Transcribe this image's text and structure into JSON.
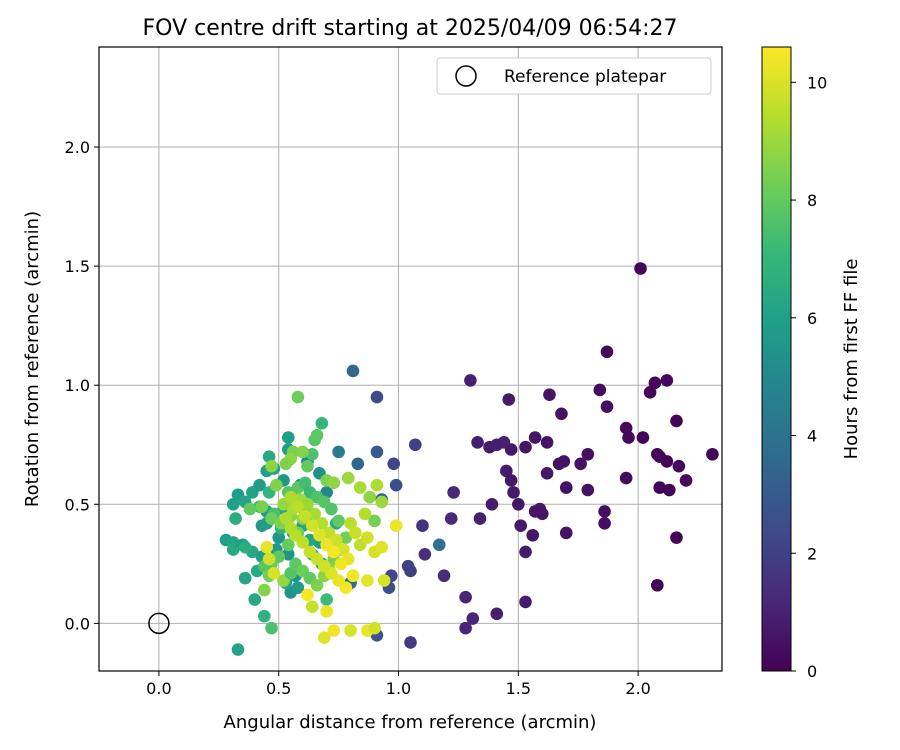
{
  "chart_data": {
    "type": "scatter",
    "title": "FOV centre drift starting at 2025/04/09 06:54:27",
    "xlabel": "Angular distance from reference (arcmin)",
    "ylabel": "Rotation from reference (arcmin)",
    "xlim": [
      -0.25,
      2.35
    ],
    "ylim": [
      -0.2,
      2.42
    ],
    "xticks": [
      0.0,
      0.5,
      1.0,
      1.5,
      2.0
    ],
    "yticks": [
      0.0,
      0.5,
      1.0,
      1.5,
      2.0
    ],
    "xtick_labels": [
      "0.0",
      "0.5",
      "1.0",
      "1.5",
      "2.0"
    ],
    "ytick_labels": [
      "0.0",
      "0.5",
      "1.0",
      "1.5",
      "2.0"
    ],
    "grid": true,
    "legend": {
      "label": "Reference platepar",
      "placement": "top-right"
    },
    "reference_point": {
      "x": 0.0,
      "y": 0.0
    },
    "colorbar": {
      "label": "Hours from first FF file",
      "colormap": "viridis",
      "range": [
        0,
        10.6
      ],
      "ticks": [
        0,
        2,
        4,
        6,
        8,
        10
      ],
      "tick_labels": [
        "0",
        "2",
        "4",
        "6",
        "8",
        "10"
      ]
    },
    "colormap_stops": [
      "#440154",
      "#482878",
      "#3e4a89",
      "#31688e",
      "#26828e",
      "#1f9e89",
      "#35b779",
      "#6ece58",
      "#b5de2b",
      "#fde725"
    ],
    "points": [
      [
        2.01,
        1.49,
        0.1
      ],
      [
        1.87,
        1.14,
        0.3
      ],
      [
        2.12,
        1.02,
        0.2
      ],
      [
        2.07,
        1.01,
        0.1
      ],
      [
        1.3,
        1.02,
        0.9
      ],
      [
        1.84,
        0.98,
        0.3
      ],
      [
        2.05,
        0.97,
        0.2
      ],
      [
        1.63,
        0.96,
        0.6
      ],
      [
        1.46,
        0.94,
        0.8
      ],
      [
        1.87,
        0.91,
        0.4
      ],
      [
        1.68,
        0.88,
        0.5
      ],
      [
        2.16,
        0.85,
        0.1
      ],
      [
        1.95,
        0.82,
        0.2
      ],
      [
        1.57,
        0.78,
        0.6
      ],
      [
        2.02,
        0.78,
        0.1
      ],
      [
        1.96,
        0.78,
        0.2
      ],
      [
        1.33,
        0.76,
        0.9
      ],
      [
        1.44,
        0.76,
        1.0
      ],
      [
        1.62,
        0.76,
        0.5
      ],
      [
        1.38,
        0.74,
        0.8
      ],
      [
        1.41,
        0.75,
        0.9
      ],
      [
        1.53,
        0.74,
        0.6
      ],
      [
        1.47,
        0.73,
        0.7
      ],
      [
        2.31,
        0.71,
        0.1
      ],
      [
        2.08,
        0.71,
        0.1
      ],
      [
        1.79,
        0.71,
        0.4
      ],
      [
        2.09,
        0.7,
        0.2
      ],
      [
        2.12,
        0.68,
        0.1
      ],
      [
        1.76,
        0.67,
        0.5
      ],
      [
        1.69,
        0.68,
        0.5
      ],
      [
        2.17,
        0.66,
        0.2
      ],
      [
        1.67,
        0.67,
        0.5
      ],
      [
        1.45,
        0.64,
        0.8
      ],
      [
        1.62,
        0.63,
        0.7
      ],
      [
        1.47,
        0.6,
        0.7
      ],
      [
        1.95,
        0.61,
        0.3
      ],
      [
        2.2,
        0.6,
        0.2
      ],
      [
        2.09,
        0.57,
        0.1
      ],
      [
        1.79,
        0.56,
        0.5
      ],
      [
        2.13,
        0.56,
        0.1
      ],
      [
        1.7,
        0.57,
        0.5
      ],
      [
        1.48,
        0.55,
        0.7
      ],
      [
        1.39,
        0.5,
        0.8
      ],
      [
        1.5,
        0.5,
        0.6
      ],
      [
        1.59,
        0.48,
        0.7
      ],
      [
        1.57,
        0.47,
        0.6
      ],
      [
        1.6,
        0.46,
        0.6
      ],
      [
        1.86,
        0.47,
        0.4
      ],
      [
        1.34,
        0.44,
        0.9
      ],
      [
        1.22,
        0.44,
        1.2
      ],
      [
        1.51,
        0.41,
        0.8
      ],
      [
        1.86,
        0.42,
        0.4
      ],
      [
        1.56,
        0.37,
        0.6
      ],
      [
        1.7,
        0.38,
        0.5
      ],
      [
        2.16,
        0.36,
        0.1
      ],
      [
        1.53,
        0.3,
        0.8
      ],
      [
        2.08,
        0.16,
        0.1
      ],
      [
        1.28,
        0.11,
        1.1
      ],
      [
        1.53,
        0.09,
        0.8
      ],
      [
        1.41,
        0.04,
        0.9
      ],
      [
        1.31,
        0.02,
        1.1
      ],
      [
        1.28,
        -0.02,
        1.1
      ],
      [
        1.05,
        -0.08,
        1.8
      ],
      [
        1.23,
        0.55,
        1.2
      ],
      [
        1.1,
        0.41,
        1.6
      ],
      [
        1.11,
        0.29,
        1.5
      ],
      [
        1.19,
        0.2,
        1.3
      ],
      [
        1.07,
        0.75,
        2.0
      ],
      [
        0.98,
        0.67,
        2.2
      ],
      [
        0.91,
        0.95,
        2.4
      ],
      [
        0.81,
        1.06,
        3.6
      ],
      [
        0.99,
        0.58,
        2.5
      ],
      [
        0.97,
        0.2,
        2.3
      ],
      [
        1.04,
        0.24,
        2.1
      ],
      [
        1.05,
        0.22,
        2.0
      ],
      [
        0.96,
        0.15,
        2.6
      ],
      [
        0.91,
        -0.05,
        2.8
      ],
      [
        0.91,
        0.72,
        3.0
      ],
      [
        0.83,
        0.67,
        3.5
      ],
      [
        0.8,
        0.17,
        3.7
      ],
      [
        1.17,
        0.33,
        3.9
      ],
      [
        0.93,
        0.52,
        3.1
      ],
      [
        0.75,
        0.72,
        4.4
      ],
      [
        0.62,
        0.68,
        4.8
      ],
      [
        0.67,
        0.63,
        5.3
      ],
      [
        0.7,
        0.55,
        4.9
      ],
      [
        0.59,
        0.58,
        5.2
      ],
      [
        0.52,
        0.6,
        5.6
      ],
      [
        0.54,
        0.78,
        5.9
      ],
      [
        0.54,
        0.73,
        5.8
      ],
      [
        0.48,
        0.65,
        6.1
      ],
      [
        0.45,
        0.64,
        6.0
      ],
      [
        0.46,
        0.7,
        6.3
      ],
      [
        0.33,
        0.54,
        5.9
      ],
      [
        0.36,
        0.51,
        6.2
      ],
      [
        0.31,
        0.5,
        6.0
      ],
      [
        0.39,
        0.55,
        6.1
      ],
      [
        0.42,
        0.58,
        5.8
      ],
      [
        0.45,
        0.47,
        5.9
      ],
      [
        0.43,
        0.41,
        5.7
      ],
      [
        0.32,
        0.44,
        6.5
      ],
      [
        0.28,
        0.35,
        6.0
      ],
      [
        0.31,
        0.34,
        6.2
      ],
      [
        0.31,
        0.31,
        6.4
      ],
      [
        0.35,
        0.33,
        5.9
      ],
      [
        0.39,
        0.3,
        6.3
      ],
      [
        0.36,
        0.32,
        6.6
      ],
      [
        0.43,
        0.28,
        5.8
      ],
      [
        0.36,
        0.19,
        6.2
      ],
      [
        0.41,
        0.22,
        6.4
      ],
      [
        0.4,
        0.1,
        6.3
      ],
      [
        0.44,
        0.03,
        6.8
      ],
      [
        0.47,
        -0.02,
        7.5
      ],
      [
        0.33,
        -0.11,
        6.1
      ],
      [
        0.45,
        0.42,
        6.0
      ],
      [
        0.5,
        0.36,
        5.6
      ],
      [
        0.49,
        0.31,
        5.7
      ],
      [
        0.54,
        0.29,
        5.5
      ],
      [
        0.57,
        0.2,
        5.4
      ],
      [
        0.55,
        0.13,
        5.3
      ],
      [
        0.58,
        0.15,
        5.8
      ],
      [
        0.53,
        0.17,
        6.2
      ],
      [
        0.56,
        0.38,
        5.9
      ],
      [
        0.6,
        0.41,
        6.1
      ],
      [
        0.63,
        0.35,
        6.2
      ],
      [
        0.67,
        0.34,
        6.0
      ],
      [
        0.64,
        0.29,
        6.3
      ],
      [
        0.68,
        0.25,
        5.9
      ],
      [
        0.73,
        0.3,
        6.1
      ],
      [
        0.74,
        0.42,
        6.4
      ],
      [
        0.7,
        0.1,
        7.2
      ],
      [
        0.62,
        0.43,
        6.7
      ],
      [
        0.52,
        0.48,
        6.3
      ],
      [
        0.58,
        0.52,
        6.5
      ],
      [
        0.61,
        0.47,
        6.9
      ],
      [
        0.51,
        0.4,
        6.8
      ],
      [
        0.46,
        0.55,
        7.0
      ],
      [
        0.42,
        0.49,
        7.3
      ],
      [
        0.48,
        0.46,
        7.5
      ],
      [
        0.54,
        0.55,
        7.7
      ],
      [
        0.58,
        0.57,
        7.9
      ],
      [
        0.61,
        0.59,
        7.4
      ],
      [
        0.63,
        0.55,
        7.2
      ],
      [
        0.66,
        0.53,
        7.6
      ],
      [
        0.69,
        0.51,
        7.8
      ],
      [
        0.65,
        0.77,
        7.8
      ],
      [
        0.68,
        0.84,
        7.0
      ],
      [
        0.66,
        0.79,
        7.9
      ],
      [
        0.64,
        0.71,
        7.5
      ],
      [
        0.62,
        0.66,
        8.0
      ],
      [
        0.58,
        0.95,
        8.2
      ],
      [
        0.56,
        0.72,
        8.4
      ],
      [
        0.6,
        0.72,
        8.6
      ],
      [
        0.55,
        0.69,
        8.8
      ],
      [
        0.53,
        0.67,
        8.5
      ],
      [
        0.47,
        0.66,
        8.7
      ],
      [
        0.49,
        0.58,
        8.6
      ],
      [
        0.52,
        0.5,
        8.9
      ],
      [
        0.43,
        0.49,
        8.4
      ],
      [
        0.38,
        0.48,
        8.0
      ],
      [
        0.47,
        0.44,
        8.2
      ],
      [
        0.51,
        0.42,
        8.5
      ],
      [
        0.55,
        0.45,
        8.7
      ],
      [
        0.6,
        0.44,
        8.8
      ],
      [
        0.58,
        0.38,
        8.3
      ],
      [
        0.54,
        0.33,
        8.1
      ],
      [
        0.5,
        0.28,
        7.9
      ],
      [
        0.47,
        0.25,
        8.0
      ],
      [
        0.44,
        0.24,
        7.8
      ],
      [
        0.46,
        0.2,
        8.3
      ],
      [
        0.44,
        0.14,
        8.6
      ],
      [
        0.52,
        0.18,
        8.9
      ],
      [
        0.55,
        0.21,
        7.7
      ],
      [
        0.57,
        0.25,
        7.9
      ],
      [
        0.6,
        0.22,
        8.2
      ],
      [
        0.63,
        0.19,
        8.0
      ],
      [
        0.66,
        0.16,
        8.5
      ],
      [
        0.69,
        0.2,
        8.7
      ],
      [
        0.71,
        0.23,
        8.9
      ],
      [
        0.73,
        0.27,
        8.4
      ],
      [
        0.76,
        0.31,
        8.1
      ],
      [
        0.78,
        0.36,
        8.3
      ],
      [
        0.75,
        0.43,
        8.0
      ],
      [
        0.72,
        0.48,
        7.7
      ],
      [
        0.7,
        0.6,
        8.5
      ],
      [
        0.73,
        0.59,
        8.8
      ],
      [
        0.79,
        0.61,
        9.0
      ],
      [
        0.84,
        0.57,
        9.2
      ],
      [
        0.88,
        0.53,
        8.8
      ],
      [
        0.91,
        0.58,
        9.3
      ],
      [
        0.9,
        0.43,
        8.4
      ],
      [
        0.93,
        0.51,
        9.0
      ],
      [
        0.86,
        0.46,
        9.4
      ],
      [
        0.8,
        0.42,
        9.5
      ],
      [
        0.82,
        0.38,
        9.7
      ],
      [
        0.84,
        0.33,
        9.6
      ],
      [
        0.87,
        0.36,
        9.8
      ],
      [
        0.9,
        0.3,
        9.9
      ],
      [
        0.93,
        0.32,
        10.1
      ],
      [
        0.99,
        0.41,
        10.3
      ],
      [
        0.94,
        0.18,
        10.0
      ],
      [
        0.87,
        0.18,
        10.2
      ],
      [
        0.81,
        0.2,
        10.4
      ],
      [
        0.78,
        0.15,
        10.5
      ],
      [
        0.75,
        0.18,
        10.3
      ],
      [
        0.72,
        0.21,
        10.1
      ],
      [
        0.69,
        0.24,
        9.9
      ],
      [
        0.66,
        0.27,
        9.8
      ],
      [
        0.63,
        0.3,
        9.7
      ],
      [
        0.6,
        0.34,
        9.6
      ],
      [
        0.57,
        0.37,
        9.5
      ],
      [
        0.55,
        0.4,
        9.4
      ],
      [
        0.53,
        0.44,
        9.3
      ],
      [
        0.56,
        0.48,
        9.2
      ],
      [
        0.59,
        0.52,
        9.1
      ],
      [
        0.62,
        0.5,
        9.0
      ],
      [
        0.65,
        0.46,
        9.2
      ],
      [
        0.68,
        0.42,
        9.4
      ],
      [
        0.71,
        0.38,
        9.6
      ],
      [
        0.74,
        0.35,
        9.8
      ],
      [
        0.77,
        0.31,
        10.0
      ],
      [
        0.79,
        0.27,
        10.2
      ],
      [
        0.76,
        0.25,
        10.4
      ],
      [
        0.73,
        0.3,
        10.5
      ],
      [
        0.7,
        0.33,
        10.3
      ],
      [
        0.67,
        0.37,
        10.1
      ],
      [
        0.64,
        0.41,
        9.9
      ],
      [
        0.61,
        0.45,
        9.7
      ],
      [
        0.58,
        0.49,
        9.5
      ],
      [
        0.55,
        0.53,
        9.3
      ],
      [
        0.64,
        0.07,
        9.7
      ],
      [
        0.69,
        -0.06,
        10.1
      ],
      [
        0.73,
        -0.03,
        10.4
      ],
      [
        0.8,
        -0.03,
        10.0
      ],
      [
        0.87,
        -0.03,
        10.3
      ],
      [
        0.9,
        -0.02,
        9.9
      ],
      [
        0.45,
        0.32,
        10.2
      ],
      [
        0.46,
        0.27,
        9.8
      ],
      [
        0.48,
        0.21,
        10.0
      ],
      [
        0.62,
        0.12,
        10.5
      ],
      [
        0.7,
        0.05,
        10.3
      ]
    ]
  }
}
